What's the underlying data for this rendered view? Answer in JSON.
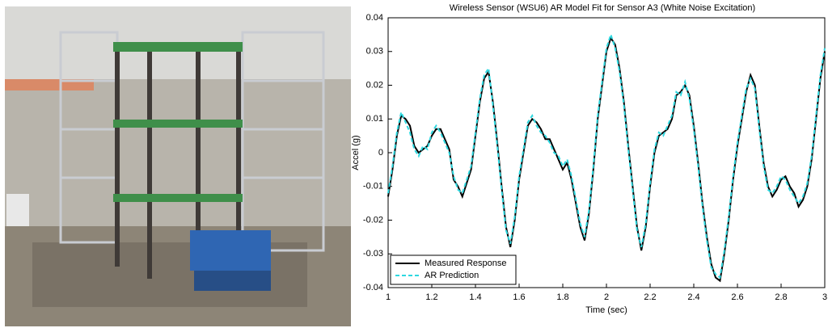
{
  "chart_data": {
    "type": "line",
    "title": "Wireless Sensor (WSU6) AR Model Fit for Sensor A3 (White Noise Excitation)",
    "x_label": "Time (sec)",
    "y_label": "Accel (g)",
    "x": [
      1.0,
      1.02,
      1.04,
      1.06,
      1.08,
      1.1,
      1.12,
      1.14,
      1.16,
      1.18,
      1.2,
      1.22,
      1.24,
      1.26,
      1.28,
      1.3,
      1.32,
      1.34,
      1.36,
      1.38,
      1.4,
      1.42,
      1.44,
      1.46,
      1.48,
      1.5,
      1.52,
      1.54,
      1.56,
      1.58,
      1.6,
      1.62,
      1.64,
      1.66,
      1.68,
      1.7,
      1.72,
      1.74,
      1.76,
      1.78,
      1.8,
      1.82,
      1.84,
      1.86,
      1.88,
      1.9,
      1.92,
      1.94,
      1.96,
      1.98,
      2.0,
      2.02,
      2.04,
      2.06,
      2.08,
      2.1,
      2.12,
      2.14,
      2.16,
      2.18,
      2.2,
      2.22,
      2.24,
      2.26,
      2.28,
      2.3,
      2.32,
      2.34,
      2.36,
      2.38,
      2.4,
      2.42,
      2.44,
      2.46,
      2.48,
      2.5,
      2.52,
      2.54,
      2.56,
      2.58,
      2.6,
      2.62,
      2.64,
      2.66,
      2.68,
      2.7,
      2.72,
      2.74,
      2.76,
      2.78,
      2.8,
      2.82,
      2.84,
      2.86,
      2.88,
      2.9,
      2.92,
      2.94,
      2.96,
      2.98,
      3.0
    ],
    "series": [
      {
        "name": "Measured Response",
        "color": "#000000",
        "dash": false,
        "values": [
          -0.013,
          -0.005,
          0.005,
          0.011,
          0.01,
          0.008,
          0.002,
          0.0,
          0.001,
          0.002,
          0.005,
          0.007,
          0.007,
          0.004,
          0.001,
          -0.008,
          -0.01,
          -0.013,
          -0.009,
          -0.005,
          0.005,
          0.015,
          0.022,
          0.024,
          0.015,
          0.003,
          -0.01,
          -0.022,
          -0.028,
          -0.02,
          -0.008,
          0.0,
          0.008,
          0.01,
          0.009,
          0.007,
          0.004,
          0.004,
          0.001,
          -0.002,
          -0.005,
          -0.003,
          -0.008,
          -0.015,
          -0.022,
          -0.026,
          -0.018,
          -0.005,
          0.01,
          0.02,
          0.03,
          0.034,
          0.032,
          0.025,
          0.015,
          0.002,
          -0.01,
          -0.022,
          -0.029,
          -0.022,
          -0.01,
          0.0,
          0.005,
          0.006,
          0.007,
          0.01,
          0.017,
          0.018,
          0.02,
          0.017,
          0.008,
          -0.003,
          -0.015,
          -0.025,
          -0.033,
          -0.037,
          -0.038,
          -0.03,
          -0.02,
          -0.008,
          0.002,
          0.01,
          0.018,
          0.023,
          0.02,
          0.008,
          -0.003,
          -0.01,
          -0.013,
          -0.011,
          -0.008,
          -0.007,
          -0.01,
          -0.012,
          -0.016,
          -0.014,
          -0.01,
          -0.002,
          0.01,
          0.022,
          0.03
        ]
      },
      {
        "name": "AR Prediction",
        "color": "#2ed8e0",
        "dash": true,
        "values": [
          -0.012,
          -0.004,
          0.006,
          0.012,
          0.009,
          0.006,
          0.001,
          -0.001,
          0.002,
          0.001,
          0.006,
          0.008,
          0.006,
          0.003,
          0.0,
          -0.007,
          -0.011,
          -0.012,
          -0.008,
          -0.004,
          0.006,
          0.016,
          0.023,
          0.025,
          0.014,
          0.002,
          -0.011,
          -0.023,
          -0.027,
          -0.019,
          -0.007,
          0.001,
          0.009,
          0.011,
          0.008,
          0.006,
          0.005,
          0.003,
          0.0,
          -0.001,
          -0.004,
          -0.002,
          -0.007,
          -0.014,
          -0.021,
          -0.025,
          -0.017,
          -0.004,
          0.011,
          0.021,
          0.031,
          0.035,
          0.031,
          0.024,
          0.014,
          0.001,
          -0.011,
          -0.023,
          -0.028,
          -0.021,
          -0.009,
          0.001,
          0.006,
          0.005,
          0.008,
          0.011,
          0.018,
          0.017,
          0.021,
          0.016,
          0.007,
          -0.004,
          -0.016,
          -0.026,
          -0.034,
          -0.036,
          -0.037,
          -0.029,
          -0.019,
          -0.007,
          0.003,
          0.011,
          0.019,
          0.022,
          0.019,
          0.007,
          -0.004,
          -0.011,
          -0.012,
          -0.01,
          -0.007,
          -0.008,
          -0.011,
          -0.013,
          -0.015,
          -0.013,
          -0.009,
          -0.001,
          0.011,
          0.023,
          0.031
        ]
      }
    ],
    "xlim": [
      1,
      3
    ],
    "ylim": [
      -0.04,
      0.04
    ],
    "xticks": [
      1,
      1.2,
      1.4,
      1.6,
      1.8,
      2,
      2.2,
      2.4,
      2.6,
      2.8,
      3
    ],
    "yticks": [
      -0.04,
      -0.03,
      -0.02,
      -0.01,
      0,
      0.01,
      0.02,
      0.03,
      0.04
    ],
    "grid": false,
    "legend": "lower left"
  }
}
